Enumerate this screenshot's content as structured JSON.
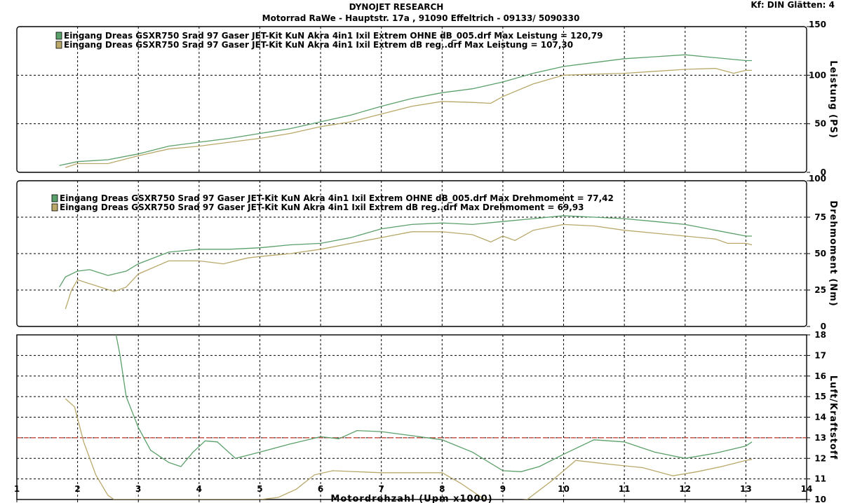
{
  "header": {
    "company": "DYNOJET RESEARCH",
    "address": "Motorrad RaWe  - Hauptstr. 17a , 91090 Effeltrich - 09133/ 5090330",
    "settings": "Kf: DIN  Glätten: 4"
  },
  "colors": {
    "run_a": "#5aa06a",
    "run_b": "#b9a86a",
    "afr_ref_line": "#c0392b"
  },
  "chart_data": [
    {
      "type": "line",
      "ylabel": "Leistung (PS)",
      "xlabel": "",
      "xlim": [
        1,
        14
      ],
      "ylim": [
        0,
        150
      ],
      "yticks": [
        0,
        50,
        100,
        150
      ],
      "grid": true,
      "legend_position": "top-left",
      "series": [
        {
          "name": "Eingang Dreas GSXR750 Srad 97 Gaser JET-Kit KuN Akra 4in1 Ixil Extrem OHNE dB_005.drf Max Leistung = 120,79",
          "points": [
            [
              1.7,
              7
            ],
            [
              2.0,
              11
            ],
            [
              2.5,
              13
            ],
            [
              3.0,
              19
            ],
            [
              3.5,
              27
            ],
            [
              4.0,
              31
            ],
            [
              4.5,
              35
            ],
            [
              5.0,
              40
            ],
            [
              5.5,
              45
            ],
            [
              6.0,
              52
            ],
            [
              6.5,
              59
            ],
            [
              7.0,
              68
            ],
            [
              7.5,
              76
            ],
            [
              8.0,
              82
            ],
            [
              8.5,
              86
            ],
            [
              9.0,
              93
            ],
            [
              9.5,
              102
            ],
            [
              10.0,
              109
            ],
            [
              10.5,
              113
            ],
            [
              11.0,
              117
            ],
            [
              11.5,
              119
            ],
            [
              12.0,
              121
            ],
            [
              12.5,
              118
            ],
            [
              13.0,
              115
            ],
            [
              13.1,
              115
            ]
          ]
        },
        {
          "name": "Eingang Dreas GSXR750 Srad 97 Gaser JET-Kit KuN Akra 4in1 Ixil Extrem dB reg..drf Max Leistung = 107,30",
          "points": [
            [
              1.8,
              5
            ],
            [
              2.0,
              9
            ],
            [
              2.5,
              9
            ],
            [
              3.0,
              17
            ],
            [
              3.5,
              24
            ],
            [
              4.0,
              27
            ],
            [
              4.5,
              31
            ],
            [
              5.0,
              35
            ],
            [
              5.5,
              40
            ],
            [
              6.0,
              47
            ],
            [
              6.5,
              52
            ],
            [
              7.0,
              60
            ],
            [
              7.5,
              68
            ],
            [
              8.0,
              73
            ],
            [
              8.5,
              72
            ],
            [
              8.8,
              71
            ],
            [
              9.0,
              78
            ],
            [
              9.5,
              91
            ],
            [
              10.0,
              100
            ],
            [
              10.5,
              101
            ],
            [
              11.0,
              102
            ],
            [
              11.5,
              104
            ],
            [
              12.0,
              106
            ],
            [
              12.5,
              107
            ],
            [
              12.8,
              102
            ],
            [
              13.0,
              105
            ],
            [
              13.1,
              105
            ]
          ]
        }
      ]
    },
    {
      "type": "line",
      "ylabel": "Drehmoment (Nm)",
      "xlabel": "",
      "xlim": [
        1,
        14
      ],
      "ylim": [
        0,
        100
      ],
      "yticks": [
        0,
        25,
        50,
        75,
        100
      ],
      "grid": true,
      "legend_position": "top-left",
      "series": [
        {
          "name": "Eingang Dreas GSXR750 Srad 97 Gaser JET-Kit KuN Akra 4in1 Ixil Extrem OHNE dB_005.drf Max Drehmoment = 77,42",
          "points": [
            [
              1.7,
              27
            ],
            [
              1.8,
              34
            ],
            [
              2.0,
              38
            ],
            [
              2.2,
              39
            ],
            [
              2.5,
              35
            ],
            [
              2.8,
              38
            ],
            [
              3.0,
              43
            ],
            [
              3.5,
              51
            ],
            [
              4.0,
              53
            ],
            [
              4.5,
              53
            ],
            [
              5.0,
              54
            ],
            [
              5.5,
              56
            ],
            [
              6.0,
              57
            ],
            [
              6.5,
              61
            ],
            [
              7.0,
              67
            ],
            [
              7.5,
              70
            ],
            [
              8.0,
              71
            ],
            [
              8.5,
              70
            ],
            [
              9.0,
              72
            ],
            [
              9.5,
              74
            ],
            [
              10.0,
              76
            ],
            [
              10.5,
              75
            ],
            [
              11.0,
              74
            ],
            [
              11.5,
              72
            ],
            [
              12.0,
              70
            ],
            [
              12.5,
              66
            ],
            [
              13.0,
              62
            ],
            [
              13.1,
              62
            ]
          ]
        },
        {
          "name": "Eingang Dreas GSXR750 Srad 97 Gaser JET-Kit KuN Akra 4in1 Ixil Extrem dB reg..drf Max Drehmoment = 69,93",
          "points": [
            [
              1.8,
              12
            ],
            [
              1.9,
              25
            ],
            [
              2.0,
              32
            ],
            [
              2.3,
              28
            ],
            [
              2.6,
              24
            ],
            [
              2.8,
              27
            ],
            [
              3.0,
              36
            ],
            [
              3.5,
              45
            ],
            [
              4.0,
              45
            ],
            [
              4.4,
              43
            ],
            [
              4.8,
              47
            ],
            [
              5.0,
              48
            ],
            [
              5.5,
              50
            ],
            [
              6.0,
              53
            ],
            [
              6.5,
              57
            ],
            [
              7.0,
              61
            ],
            [
              7.5,
              65
            ],
            [
              8.0,
              65
            ],
            [
              8.5,
              63
            ],
            [
              8.8,
              58
            ],
            [
              9.0,
              62
            ],
            [
              9.2,
              59
            ],
            [
              9.5,
              66
            ],
            [
              10.0,
              70
            ],
            [
              10.5,
              69
            ],
            [
              11.0,
              66
            ],
            [
              11.5,
              64
            ],
            [
              12.0,
              62
            ],
            [
              12.5,
              60
            ],
            [
              12.7,
              57
            ],
            [
              13.0,
              57
            ],
            [
              13.1,
              56
            ]
          ]
        }
      ]
    },
    {
      "type": "line",
      "ylabel": "Luft/Kraftstoff",
      "xlabel": "Motordrehzahl (Upm x1000)",
      "xlim": [
        1,
        14
      ],
      "ylim": [
        10,
        18
      ],
      "xticks": [
        1,
        2,
        3,
        4,
        5,
        6,
        7,
        8,
        9,
        10,
        11,
        12,
        13,
        14
      ],
      "yticks": [
        10,
        11,
        12,
        13,
        14,
        15,
        16,
        17,
        18
      ],
      "grid": true,
      "reference_line": 13,
      "series": [
        {
          "name": "",
          "points": [
            [
              2.6,
              18.5
            ],
            [
              2.7,
              17
            ],
            [
              2.8,
              15
            ],
            [
              3.0,
              13.5
            ],
            [
              3.2,
              12.4
            ],
            [
              3.5,
              11.8
            ],
            [
              3.7,
              11.6
            ],
            [
              3.9,
              12.3
            ],
            [
              4.1,
              12.85
            ],
            [
              4.3,
              12.8
            ],
            [
              4.6,
              12.0
            ],
            [
              5.0,
              12.3
            ],
            [
              5.5,
              12.7
            ],
            [
              6.0,
              13.05
            ],
            [
              6.3,
              12.95
            ],
            [
              6.6,
              13.35
            ],
            [
              7.0,
              13.3
            ],
            [
              7.5,
              13.1
            ],
            [
              8.0,
              12.9
            ],
            [
              8.5,
              12.3
            ],
            [
              9.0,
              11.4
            ],
            [
              9.3,
              11.35
            ],
            [
              9.6,
              11.6
            ],
            [
              10.0,
              12.2
            ],
            [
              10.5,
              12.9
            ],
            [
              11.0,
              12.8
            ],
            [
              11.5,
              12.3
            ],
            [
              12.0,
              12.0
            ],
            [
              12.5,
              12.25
            ],
            [
              13.0,
              12.6
            ],
            [
              13.1,
              12.8
            ]
          ]
        },
        {
          "name": "",
          "points": [
            [
              1.8,
              14.9
            ],
            [
              1.95,
              14.5
            ],
            [
              2.1,
              12.8
            ],
            [
              2.3,
              11.2
            ],
            [
              2.5,
              10.2
            ],
            [
              2.6,
              10.0
            ],
            [
              3.0,
              10.0
            ],
            [
              4.0,
              10.0
            ],
            [
              5.0,
              10.0
            ],
            [
              5.3,
              10.1
            ],
            [
              5.6,
              10.5
            ],
            [
              5.9,
              11.2
            ],
            [
              6.2,
              11.4
            ],
            [
              7.0,
              11.3
            ],
            [
              7.5,
              11.3
            ],
            [
              8.0,
              11.3
            ],
            [
              8.3,
              10.8
            ],
            [
              8.7,
              10.0
            ],
            [
              9.0,
              9.9
            ],
            [
              9.4,
              10.0
            ],
            [
              9.8,
              10.9
            ],
            [
              10.2,
              11.9
            ],
            [
              10.8,
              11.7
            ],
            [
              11.3,
              11.55
            ],
            [
              11.8,
              11.15
            ],
            [
              12.2,
              11.35
            ],
            [
              12.6,
              11.6
            ],
            [
              13.0,
              11.9
            ],
            [
              13.1,
              11.95
            ]
          ]
        }
      ]
    }
  ]
}
